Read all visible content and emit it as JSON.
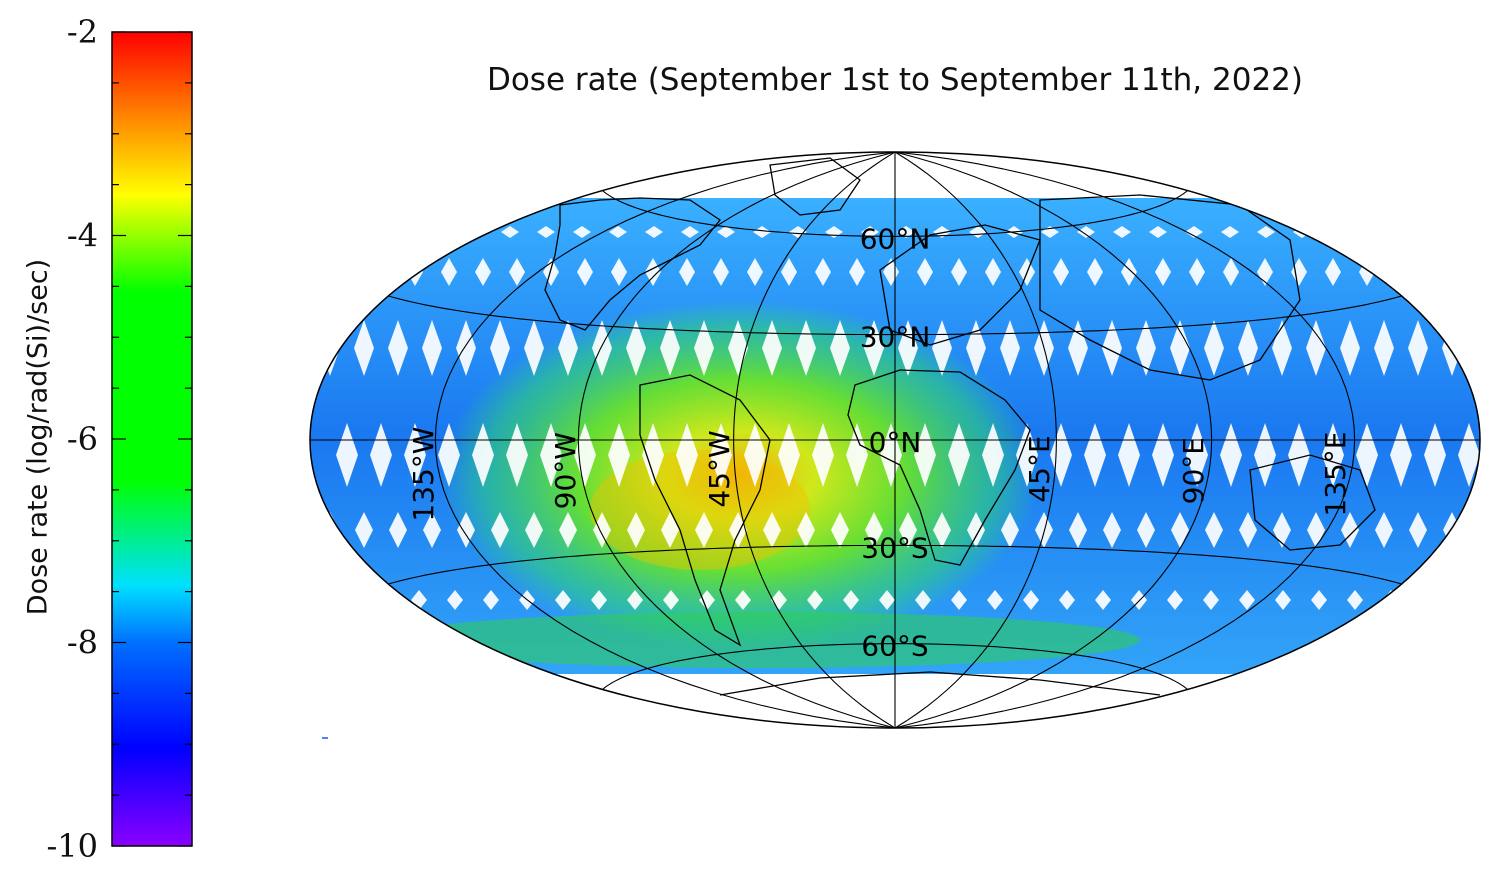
{
  "title": "Dose rate (September 1st to September 11th, 2022)",
  "colorbar": {
    "label": "Dose rate (log/rad(Si)/sec)",
    "min": -10,
    "max": -2,
    "ticks": [
      "-2",
      "-4",
      "-6",
      "-8",
      "-10"
    ],
    "tick_values": [
      -2,
      -4,
      -6,
      -8,
      -10
    ],
    "colors": [
      "#8a00ff",
      "#0000ff",
      "#0070ff",
      "#00e0ff",
      "#00ff00",
      "#00ff00",
      "#ffff00",
      "#ff8000",
      "#ff0000"
    ]
  },
  "map": {
    "projection": "Hammer-Aitoff",
    "data_latitude_range": [
      -66,
      66
    ],
    "latitude_labels": [
      "60°N",
      "30°N",
      "0°N",
      "30°S",
      "60°S"
    ],
    "latitude_values": [
      60,
      30,
      0,
      -30,
      -60
    ],
    "longitude_labels": [
      "135°W",
      "90°W",
      "45°W",
      "45°E",
      "90°E",
      "135°E"
    ],
    "longitude_values": [
      -135,
      -90,
      -45,
      45,
      90,
      135
    ],
    "background_level_label": "≈ -7.5 to -8",
    "anomaly_region": "South Atlantic Anomaly",
    "anomaly_peak_value": -3.5
  }
}
